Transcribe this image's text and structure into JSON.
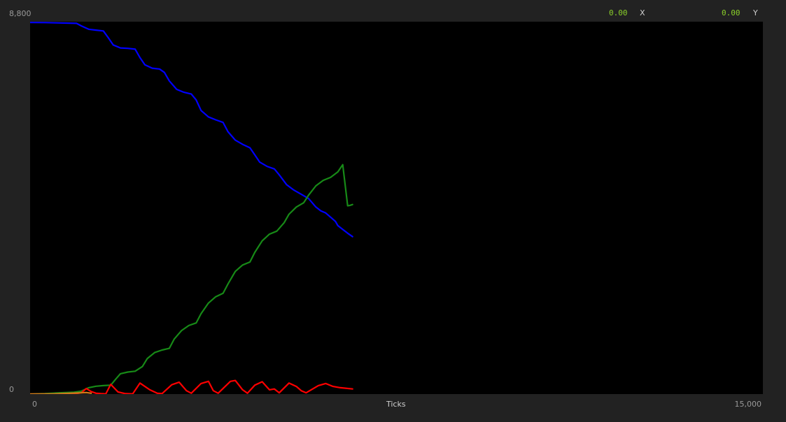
{
  "readout": {
    "x_value": "0.00",
    "x_label": "X",
    "y_value": "0.00",
    "y_label": "Y"
  },
  "axis": {
    "y_max_label": "8,800",
    "y_min_label": "0",
    "x_min_label": "0",
    "x_max_label": "15,000",
    "x_title": "Ticks"
  },
  "colors": {
    "background": "#222222",
    "plot_background": "#000000",
    "readout_value": "#8bd12a"
  },
  "chart_data": {
    "type": "line",
    "xlabel": "Ticks",
    "ylabel": "",
    "xlim": [
      0,
      15000
    ],
    "ylim": [
      0,
      8800
    ],
    "grid": false,
    "series": [
      {
        "color": "#0000ff",
        "points": [
          [
            0,
            8780
          ],
          [
            300,
            8778
          ],
          [
            600,
            8770
          ],
          [
            950,
            8760
          ],
          [
            1050,
            8700
          ],
          [
            1200,
            8620
          ],
          [
            1350,
            8600
          ],
          [
            1500,
            8580
          ],
          [
            1600,
            8420
          ],
          [
            1700,
            8250
          ],
          [
            1850,
            8180
          ],
          [
            2000,
            8170
          ],
          [
            2150,
            8150
          ],
          [
            2250,
            7950
          ],
          [
            2350,
            7780
          ],
          [
            2500,
            7700
          ],
          [
            2650,
            7680
          ],
          [
            2750,
            7600
          ],
          [
            2850,
            7400
          ],
          [
            3000,
            7200
          ],
          [
            3150,
            7130
          ],
          [
            3300,
            7090
          ],
          [
            3400,
            6950
          ],
          [
            3500,
            6700
          ],
          [
            3650,
            6550
          ],
          [
            3800,
            6480
          ],
          [
            3950,
            6420
          ],
          [
            4050,
            6200
          ],
          [
            4200,
            6000
          ],
          [
            4350,
            5900
          ],
          [
            4500,
            5820
          ],
          [
            4600,
            5650
          ],
          [
            4700,
            5480
          ],
          [
            4850,
            5380
          ],
          [
            5000,
            5320
          ],
          [
            5100,
            5180
          ],
          [
            5250,
            4950
          ],
          [
            5400,
            4820
          ],
          [
            5550,
            4720
          ],
          [
            5700,
            4620
          ],
          [
            5850,
            4420
          ],
          [
            5950,
            4330
          ],
          [
            6050,
            4280
          ],
          [
            6150,
            4180
          ],
          [
            6250,
            4080
          ],
          [
            6300,
            3980
          ],
          [
            6400,
            3890
          ],
          [
            6500,
            3800
          ],
          [
            6600,
            3720
          ]
        ]
      },
      {
        "color": "#178a17",
        "points": [
          [
            0,
            0
          ],
          [
            300,
            10
          ],
          [
            600,
            30
          ],
          [
            900,
            45
          ],
          [
            1050,
            70
          ],
          [
            1200,
            150
          ],
          [
            1350,
            185
          ],
          [
            1500,
            200
          ],
          [
            1650,
            210
          ],
          [
            1750,
            350
          ],
          [
            1850,
            480
          ],
          [
            2000,
            520
          ],
          [
            2150,
            540
          ],
          [
            2300,
            650
          ],
          [
            2400,
            840
          ],
          [
            2550,
            980
          ],
          [
            2700,
            1040
          ],
          [
            2850,
            1080
          ],
          [
            2950,
            1300
          ],
          [
            3100,
            1500
          ],
          [
            3250,
            1620
          ],
          [
            3400,
            1680
          ],
          [
            3500,
            1900
          ],
          [
            3650,
            2150
          ],
          [
            3800,
            2300
          ],
          [
            3950,
            2380
          ],
          [
            4050,
            2600
          ],
          [
            4200,
            2900
          ],
          [
            4350,
            3050
          ],
          [
            4500,
            3120
          ],
          [
            4600,
            3350
          ],
          [
            4750,
            3620
          ],
          [
            4900,
            3780
          ],
          [
            5050,
            3850
          ],
          [
            5200,
            4050
          ],
          [
            5300,
            4250
          ],
          [
            5450,
            4420
          ],
          [
            5600,
            4520
          ],
          [
            5700,
            4700
          ],
          [
            5850,
            4920
          ],
          [
            6000,
            5050
          ],
          [
            6150,
            5120
          ],
          [
            6300,
            5250
          ],
          [
            6400,
            5420
          ],
          [
            6500,
            4450
          ],
          [
            6550,
            4460
          ],
          [
            6600,
            4480
          ]
        ]
      },
      {
        "color": "#ff0000",
        "points": [
          [
            0,
            0
          ],
          [
            500,
            0
          ],
          [
            900,
            5
          ],
          [
            1050,
            30
          ],
          [
            1150,
            130
          ],
          [
            1250,
            60
          ],
          [
            1350,
            20
          ],
          [
            1450,
            10
          ],
          [
            1550,
            5
          ],
          [
            1650,
            230
          ],
          [
            1800,
            50
          ],
          [
            1950,
            10
          ],
          [
            2100,
            5
          ],
          [
            2250,
            260
          ],
          [
            2450,
            100
          ],
          [
            2600,
            20
          ],
          [
            2700,
            10
          ],
          [
            2900,
            220
          ],
          [
            3050,
            280
          ],
          [
            3200,
            80
          ],
          [
            3300,
            20
          ],
          [
            3500,
            250
          ],
          [
            3650,
            300
          ],
          [
            3750,
            80
          ],
          [
            3850,
            20
          ],
          [
            4100,
            300
          ],
          [
            4200,
            320
          ],
          [
            4350,
            100
          ],
          [
            4450,
            20
          ],
          [
            4600,
            210
          ],
          [
            4750,
            290
          ],
          [
            4900,
            100
          ],
          [
            5000,
            120
          ],
          [
            5100,
            30
          ],
          [
            5300,
            260
          ],
          [
            5450,
            180
          ],
          [
            5550,
            80
          ],
          [
            5650,
            30
          ],
          [
            5900,
            200
          ],
          [
            6050,
            250
          ],
          [
            6200,
            180
          ],
          [
            6350,
            150
          ],
          [
            6600,
            120
          ]
        ]
      },
      {
        "color": "#d07a1a",
        "points": [
          [
            0,
            0
          ],
          [
            500,
            5
          ],
          [
            950,
            25
          ],
          [
            1150,
            35
          ],
          [
            1250,
            20
          ]
        ]
      }
    ]
  }
}
